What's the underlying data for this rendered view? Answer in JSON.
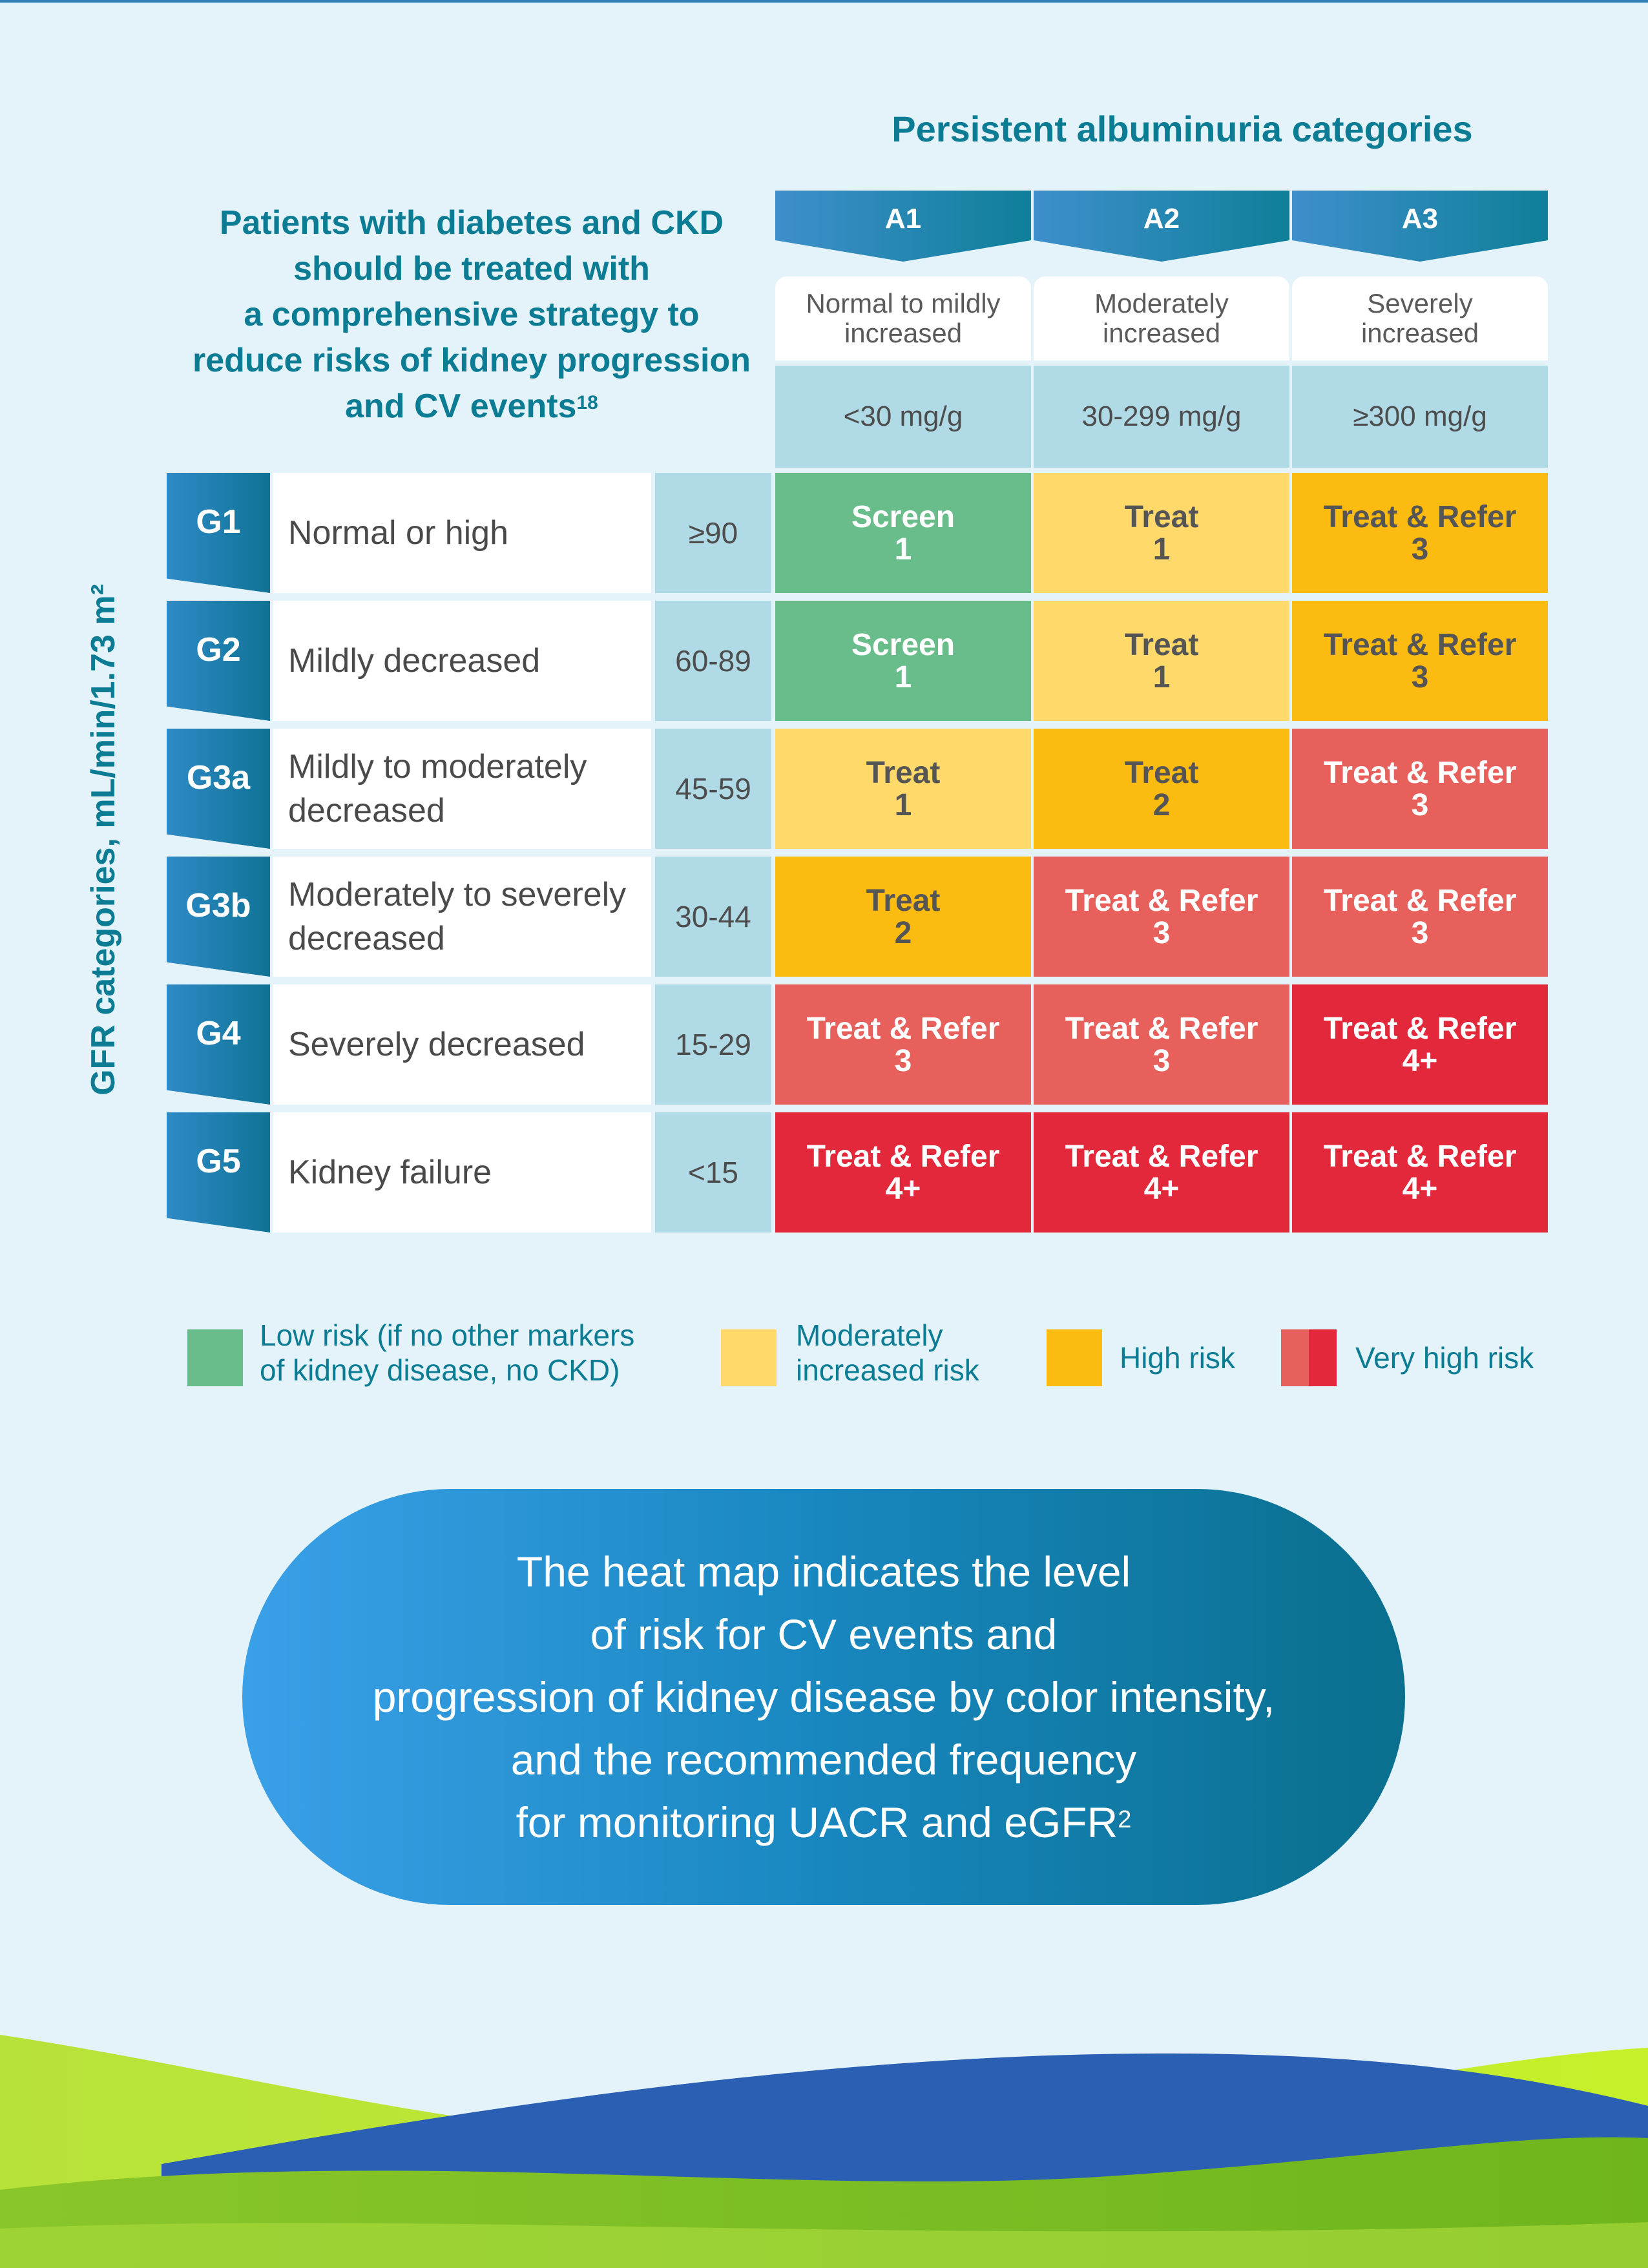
{
  "albuminuria_title": "Persistent albuminuria categories",
  "intro": {
    "lines": [
      "Patients with diabetes and CKD",
      "should be treated with",
      "a comprehensive strategy to",
      "reduce risks of kidney progression",
      "and CV events"
    ],
    "ref": "18"
  },
  "columns": [
    {
      "code": "A1",
      "desc_1": "Normal to mildly",
      "desc_2": "increased",
      "range": "<30 mg/g"
    },
    {
      "code": "A2",
      "desc_1": "Moderately",
      "desc_2": "increased",
      "range": "30-299 mg/g"
    },
    {
      "code": "A3",
      "desc_1": "Severely",
      "desc_2": "increased",
      "range": "≥300 mg/g"
    }
  ],
  "gfr_axis_label": "GFR categories, mL/min/1.73 m²",
  "rows": [
    {
      "code": "G1",
      "desc_1": "Normal or high",
      "desc_2": "",
      "range": "≥90"
    },
    {
      "code": "G2",
      "desc_1": "Mildly decreased",
      "desc_2": "",
      "range": "60-89"
    },
    {
      "code": "G3a",
      "desc_1": "Mildly to moderately",
      "desc_2": "decreased",
      "range": "45-59"
    },
    {
      "code": "G3b",
      "desc_1": "Moderately to severely",
      "desc_2": "decreased",
      "range": "30-44"
    },
    {
      "code": "G4",
      "desc_1": "Severely decreased",
      "desc_2": "",
      "range": "15-29"
    },
    {
      "code": "G5",
      "desc_1": "Kidney failure",
      "desc_2": "",
      "range": "<15"
    }
  ],
  "cells": [
    [
      {
        "action": "Screen",
        "freq": "1",
        "risk": "green"
      },
      {
        "action": "Treat",
        "freq": "1",
        "risk": "yellow"
      },
      {
        "action": "Treat & Refer",
        "freq": "3",
        "risk": "orange"
      }
    ],
    [
      {
        "action": "Screen",
        "freq": "1",
        "risk": "green"
      },
      {
        "action": "Treat",
        "freq": "1",
        "risk": "yellow"
      },
      {
        "action": "Treat & Refer",
        "freq": "3",
        "risk": "orange"
      }
    ],
    [
      {
        "action": "Treat",
        "freq": "1",
        "risk": "yellow"
      },
      {
        "action": "Treat",
        "freq": "2",
        "risk": "orange"
      },
      {
        "action": "Treat & Refer",
        "freq": "3",
        "risk": "salmon"
      }
    ],
    [
      {
        "action": "Treat",
        "freq": "2",
        "risk": "orange"
      },
      {
        "action": "Treat & Refer",
        "freq": "3",
        "risk": "salmon"
      },
      {
        "action": "Treat & Refer",
        "freq": "3",
        "risk": "salmon"
      }
    ],
    [
      {
        "action": "Treat & Refer",
        "freq": "3",
        "risk": "salmon"
      },
      {
        "action": "Treat & Refer",
        "freq": "3",
        "risk": "salmon"
      },
      {
        "action": "Treat & Refer",
        "freq": "4+",
        "risk": "red"
      }
    ],
    [
      {
        "action": "Treat & Refer",
        "freq": "4+",
        "risk": "red"
      },
      {
        "action": "Treat & Refer",
        "freq": "4+",
        "risk": "red"
      },
      {
        "action": "Treat & Refer",
        "freq": "4+",
        "risk": "red"
      }
    ]
  ],
  "legend": [
    {
      "line_1": "Low risk (if no other markers",
      "line_2": "of kidney disease, no CKD)",
      "color": "#68bd8a"
    },
    {
      "line_1": "Moderately",
      "line_2": "increased risk",
      "color": "#ffd96a"
    },
    {
      "line_1": "High risk",
      "line_2": "",
      "color": "#fbbb10"
    },
    {
      "line_1": "Very high risk",
      "line_2": "",
      "color_a": "#e8605b",
      "color_b": "#e2283a"
    }
  ],
  "pill": {
    "lines": [
      "The heat map indicates the level",
      "of risk for CV events and",
      "progression of kidney disease by color intensity,",
      "and the recommended frequency",
      "for monitoring UACR and eGFR"
    ],
    "ref": "2"
  },
  "colors": {
    "teal_text": "#0b7c93",
    "green": "#68bd8a",
    "yellow": "#ffd96a",
    "orange": "#fbbb10",
    "salmon": "#e8605b",
    "red": "#e2283a"
  }
}
